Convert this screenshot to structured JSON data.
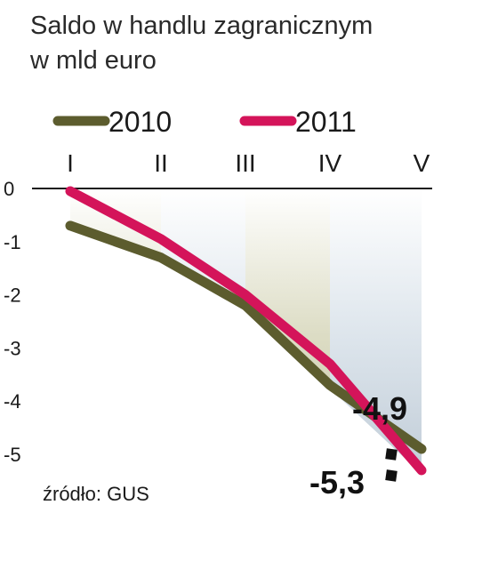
{
  "chart_data": {
    "type": "line",
    "title": "Saldo w handlu zagranicznym",
    "subtitle": "w mld euro",
    "categories": [
      "I",
      "II",
      "III",
      "IV",
      "V"
    ],
    "ylim": [
      -5.4,
      0
    ],
    "yticks": [
      "0",
      "-1",
      "-2",
      "-3",
      "-4",
      "-5"
    ],
    "series": [
      {
        "name": "2010",
        "color": "#5c5c2e",
        "values": [
          -0.7,
          -1.3,
          -2.2,
          -3.7,
          -4.9
        ]
      },
      {
        "name": "2011",
        "color": "#d4145a",
        "values": [
          -0.05,
          -0.95,
          -2.0,
          -3.3,
          -5.3
        ]
      }
    ],
    "annotations": [
      {
        "text": "-4,9",
        "series": "2010"
      },
      {
        "text": "-5,3",
        "series": "2011"
      }
    ],
    "source": "źródło: GUS"
  }
}
